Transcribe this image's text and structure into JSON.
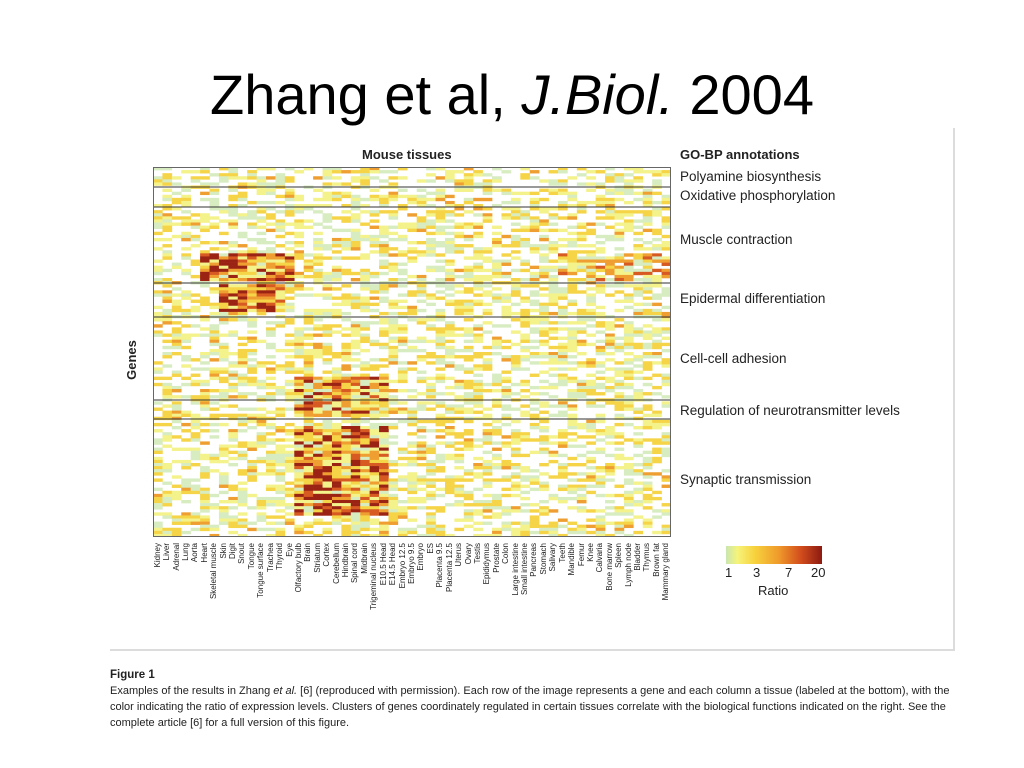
{
  "slide": {
    "title_prefix": "Zhang et al, ",
    "title_journal": "J.Biol.",
    "title_year": " 2004"
  },
  "figure": {
    "x_axis_title": "Mouse tissues",
    "y_axis_title": "Genes",
    "annotations_title": "GO-BP annotations",
    "annotations": [
      "Polyamine biosynthesis",
      "Oxidative phosphorylation",
      "Muscle contraction",
      "Epidermal differentiation",
      "Cell-cell adhesion",
      "Regulation of neurotransmitter levels",
      "Synaptic transmission"
    ],
    "tissues": [
      "Kidney",
      "Liver",
      "Adrenal",
      "Lung",
      "Aorta",
      "Heart",
      "Skeletal muscle",
      "Skin",
      "Digit",
      "Snout",
      "Tongue",
      "Tongue surface",
      "Trachea",
      "Thyroid",
      "Eye",
      "Olfactory bulb",
      "Brain",
      "Striatum",
      "Cortex",
      "Cerebellum",
      "Hindbrain",
      "Spinal cord",
      "Midbrain",
      "Trigeminal nucleus",
      "E10.5 Head",
      "E14.5 Head",
      "Embryo 12.5",
      "Embryo 9.5",
      "Embryo",
      "ES",
      "Placenta 9.5",
      "Placenta 12.5",
      "Uterus",
      "Ovary",
      "Testis",
      "Epididymus",
      "Prostate",
      "Colon",
      "Large intestine",
      "Small intestine",
      "Pancreas",
      "Stomach",
      "Salivary",
      "Teeth",
      "Mandible",
      "Femur",
      "Knee",
      "Calvaria",
      "Bone marrow",
      "Spleen",
      "Lymph node",
      "Bladder",
      "Thymus",
      "Brown fat",
      "Mammary gland"
    ],
    "colorbar": {
      "ticks": [
        "1",
        "3",
        "7",
        "20"
      ],
      "label": "Ratio"
    }
  },
  "caption": {
    "label": "Figure 1",
    "text_before_em": "Examples of the results in Zhang ",
    "em": "et al.",
    "text_after_em": " [6] (reproduced with permission). Each row of the image represents a gene and each column a tissue (labeled at the bottom), with the color indicating the ratio of expression levels. Clusters of genes coordinately regulated in certain tissues correlate with the biological functions indicated on the right. See the complete article [6] for a full version of this figure."
  },
  "colors": {
    "low": "#c9e6b0",
    "mid_low": "#f6f37a",
    "mid": "#f7d23d",
    "mid_high": "#ef9a2b",
    "high": "#d24d1c",
    "max": "#8b1a12"
  }
}
